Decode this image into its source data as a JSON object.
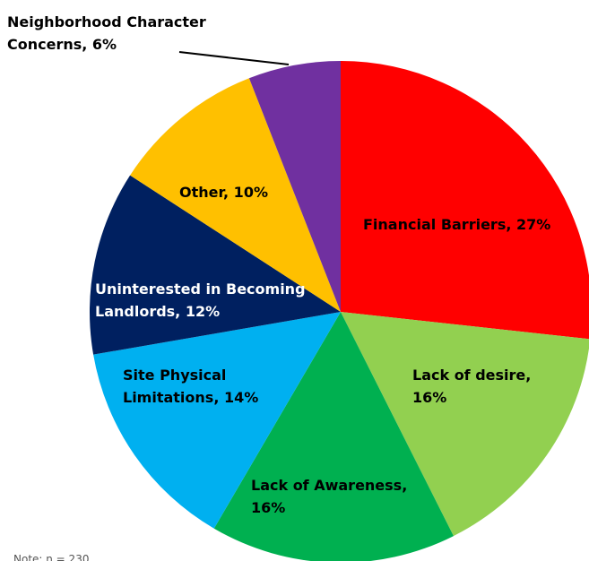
{
  "chart_data": {
    "type": "pie",
    "labels": [
      [
        "Financial Barriers, 27%"
      ],
      [
        "Lack of desire,",
        "16%"
      ],
      [
        "Lack of Awareness,",
        "16%"
      ],
      [
        "Site Physical",
        "Limitations, 14%"
      ],
      [
        "Uninterested in Becoming",
        "Landlords, 12%"
      ],
      [
        "Other, 10%"
      ],
      [
        "Neighborhood Character",
        "Concerns, 6%"
      ]
    ],
    "values": [
      27,
      16,
      16,
      14,
      12,
      10,
      6
    ],
    "colors": [
      "#ff0000",
      "#92d050",
      "#00b050",
      "#00b0f0",
      "#002060",
      "#ffc000",
      "#7030a0"
    ],
    "note": "Note: n = 230"
  }
}
